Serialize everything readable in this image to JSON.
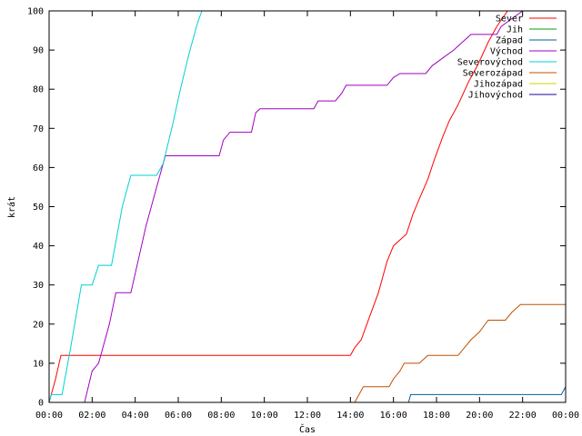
{
  "chart_data": {
    "type": "line",
    "title": "",
    "xlabel": "Čas",
    "ylabel": "krát",
    "xlim": [
      0,
      24
    ],
    "ylim": [
      0,
      100
    ],
    "grid": false,
    "legend_position": "top-right",
    "x_ticks": [
      {
        "value": 0,
        "label": "00:00"
      },
      {
        "value": 2,
        "label": "02:00"
      },
      {
        "value": 4,
        "label": "04:00"
      },
      {
        "value": 6,
        "label": "06:00"
      },
      {
        "value": 8,
        "label": "08:00"
      },
      {
        "value": 10,
        "label": "10:00"
      },
      {
        "value": 12,
        "label": "12:00"
      },
      {
        "value": 14,
        "label": "14:00"
      },
      {
        "value": 16,
        "label": "16:00"
      },
      {
        "value": 18,
        "label": "18:00"
      },
      {
        "value": 20,
        "label": "20:00"
      },
      {
        "value": 22,
        "label": "22:00"
      },
      {
        "value": 24,
        "label": "00:00"
      }
    ],
    "y_ticks": [
      0,
      10,
      20,
      30,
      40,
      50,
      60,
      70,
      80,
      90,
      100
    ],
    "series": [
      {
        "name": "Sever",
        "color": "#ff0000",
        "points": [
          [
            0,
            0
          ],
          [
            0.3,
            6
          ],
          [
            0.55,
            12
          ],
          [
            14.0,
            12
          ],
          [
            14.2,
            14
          ],
          [
            14.5,
            16
          ],
          [
            14.9,
            22
          ],
          [
            15.3,
            28
          ],
          [
            15.7,
            36
          ],
          [
            16.0,
            40
          ],
          [
            16.6,
            43
          ],
          [
            16.9,
            48
          ],
          [
            17.2,
            52
          ],
          [
            17.6,
            57
          ],
          [
            17.9,
            62
          ],
          [
            18.3,
            68
          ],
          [
            18.6,
            72
          ],
          [
            19.0,
            76
          ],
          [
            19.5,
            82
          ],
          [
            19.9,
            86
          ],
          [
            20.4,
            92
          ],
          [
            20.8,
            96
          ],
          [
            21.3,
            100
          ],
          [
            24,
            100
          ]
        ]
      },
      {
        "name": "Jih",
        "color": "#00a000",
        "points": []
      },
      {
        "name": "Západ",
        "color": "#0060a0",
        "points": [
          [
            16.7,
            0
          ],
          [
            16.8,
            2
          ],
          [
            23.8,
            2
          ],
          [
            24,
            4
          ]
        ]
      },
      {
        "name": "Východ",
        "color": "#a000c0",
        "points": [
          [
            1.65,
            0
          ],
          [
            2.0,
            8
          ],
          [
            2.3,
            10
          ],
          [
            2.8,
            20
          ],
          [
            3.1,
            28
          ],
          [
            3.8,
            28
          ],
          [
            4.5,
            45
          ],
          [
            5.0,
            55
          ],
          [
            5.4,
            63
          ],
          [
            7.9,
            63
          ],
          [
            8.1,
            67
          ],
          [
            8.4,
            69
          ],
          [
            9.4,
            69
          ],
          [
            9.6,
            74
          ],
          [
            9.8,
            75
          ],
          [
            12.3,
            75
          ],
          [
            12.5,
            77
          ],
          [
            13.3,
            77
          ],
          [
            13.6,
            79
          ],
          [
            13.8,
            81
          ],
          [
            15.7,
            81
          ],
          [
            16.0,
            83
          ],
          [
            16.3,
            84
          ],
          [
            17.5,
            84
          ],
          [
            17.8,
            86
          ],
          [
            18.3,
            88
          ],
          [
            18.8,
            90
          ],
          [
            19.2,
            92
          ],
          [
            19.6,
            94
          ],
          [
            20.8,
            94
          ],
          [
            21.0,
            96
          ],
          [
            21.5,
            98
          ],
          [
            22.0,
            100
          ],
          [
            24,
            100
          ]
        ]
      },
      {
        "name": "Severovýchod",
        "color": "#00d0d0",
        "points": [
          [
            0,
            0
          ],
          [
            0.1,
            2
          ],
          [
            0.6,
            2
          ],
          [
            1.0,
            14
          ],
          [
            1.5,
            30
          ],
          [
            2.0,
            30
          ],
          [
            2.3,
            35
          ],
          [
            2.9,
            35
          ],
          [
            3.4,
            50
          ],
          [
            3.8,
            58
          ],
          [
            5.0,
            58
          ],
          [
            5.3,
            61
          ],
          [
            5.7,
            70
          ],
          [
            6.1,
            80
          ],
          [
            6.5,
            89
          ],
          [
            6.9,
            97
          ],
          [
            7.1,
            100
          ],
          [
            24,
            100
          ]
        ]
      },
      {
        "name": "Severozápad",
        "color": "#c05000",
        "points": [
          [
            14.2,
            0
          ],
          [
            14.4,
            2
          ],
          [
            14.6,
            4
          ],
          [
            15.8,
            4
          ],
          [
            16.0,
            6
          ],
          [
            16.3,
            8
          ],
          [
            16.5,
            10
          ],
          [
            17.2,
            10
          ],
          [
            17.6,
            12
          ],
          [
            19.0,
            12
          ],
          [
            19.3,
            14
          ],
          [
            19.6,
            16
          ],
          [
            20.0,
            18
          ],
          [
            20.4,
            21
          ],
          [
            21.2,
            21
          ],
          [
            21.5,
            23
          ],
          [
            21.9,
            25
          ],
          [
            24,
            25
          ],
          [
            24,
            26
          ]
        ]
      },
      {
        "name": "Jihozápad",
        "color": "#d0d000",
        "points": []
      },
      {
        "name": "Jihovýchod",
        "color": "#2000a0",
        "points": []
      }
    ]
  }
}
